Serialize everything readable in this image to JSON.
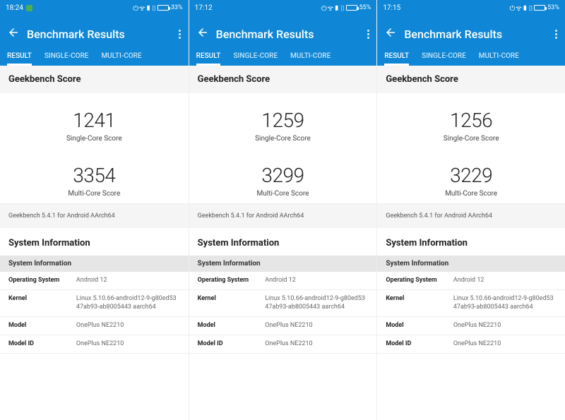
{
  "colors": {
    "brand": "#0f87d6",
    "bg_light": "#f5f5f5",
    "text": "#222222",
    "muted": "#666666"
  },
  "panels": [
    {
      "status": {
        "time": "18:24",
        "battery_pct": "33%",
        "battery_fill_pct": 33,
        "show_dot": true
      },
      "app_title": "Benchmark Results",
      "tabs": [
        "RESULT",
        "SINGLE-CORE",
        "MULTI-CORE"
      ],
      "active_tab": 0,
      "score_heading": "Geekbench Score",
      "single_score": "1241",
      "single_label": "Single-Core Score",
      "multi_score": "3354",
      "multi_label": "Multi-Core Score",
      "footnote": "Geekbench 5.4.1 for Android AArch64",
      "sysinfo_heading": "System Information",
      "sysinfo_subhead": "System Information",
      "rows": [
        {
          "k": "Operating System",
          "v": "Android 12"
        },
        {
          "k": "Kernel",
          "v": "Linux 5.10.66-android12-9-g80ed5347ab93-ab8005443 aarch64"
        },
        {
          "k": "Model",
          "v": "OnePlus NE2210"
        },
        {
          "k": "Model ID",
          "v": "OnePlus NE2210"
        }
      ]
    },
    {
      "status": {
        "time": "17:12",
        "battery_pct": "55%",
        "battery_fill_pct": 55,
        "show_dot": false
      },
      "app_title": "Benchmark Results",
      "tabs": [
        "RESULT",
        "SINGLE-CORE",
        "MULTI-CORE"
      ],
      "active_tab": 0,
      "score_heading": "Geekbench Score",
      "single_score": "1259",
      "single_label": "Single-Core Score",
      "multi_score": "3299",
      "multi_label": "Multi-Core Score",
      "footnote": "Geekbench 5.4.1 for Android AArch64",
      "sysinfo_heading": "System Information",
      "sysinfo_subhead": "System Information",
      "rows": [
        {
          "k": "Operating System",
          "v": "Android 12"
        },
        {
          "k": "Kernel",
          "v": "Linux 5.10.66-android12-9-g80ed5347ab93-ab8005443 aarch64"
        },
        {
          "k": "Model",
          "v": "OnePlus NE2210"
        },
        {
          "k": "Model ID",
          "v": "OnePlus NE2210"
        }
      ]
    },
    {
      "status": {
        "time": "17:15",
        "battery_pct": "53%",
        "battery_fill_pct": 53,
        "show_dot": false
      },
      "app_title": "Benchmark Results",
      "tabs": [
        "RESULT",
        "SINGLE-CORE",
        "MULTI-CORE"
      ],
      "active_tab": 0,
      "score_heading": "Geekbench Score",
      "single_score": "1256",
      "single_label": "Single-Core Score",
      "multi_score": "3229",
      "multi_label": "Multi-Core Score",
      "footnote": "Geekbench 5.4.1 for Android AArch64",
      "sysinfo_heading": "System Information",
      "sysinfo_subhead": "System Information",
      "rows": [
        {
          "k": "Operating System",
          "v": "Android 12"
        },
        {
          "k": "Kernel",
          "v": "Linux 5.10.66-android12-9-g80ed5347ab93-ab8005443 aarch64"
        },
        {
          "k": "Model",
          "v": "OnePlus NE2210"
        },
        {
          "k": "Model ID",
          "v": "OnePlus NE2210"
        }
      ]
    }
  ]
}
